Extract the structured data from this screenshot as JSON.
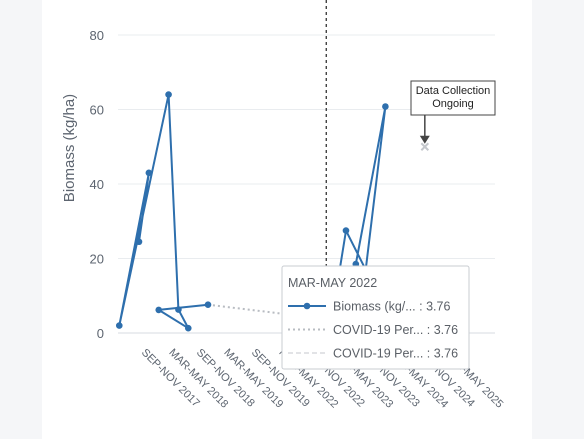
{
  "chart_data": {
    "type": "line",
    "ylabel": "Biomass (kg/ha)",
    "ylim": [
      0,
      80
    ],
    "yticks": [
      0,
      20,
      40,
      60,
      80
    ],
    "grid": true,
    "x_tick_labels": [
      "SEP-NOV 2017",
      "MAR-MAY 2018",
      "SEP-NOV 2018",
      "MAR-MAY 2019",
      "SEP-NOV 2019",
      "MAR-MAY 2022",
      "SEP-NOV 2022",
      "MAR-MAY 2023",
      "SEP-NOV 2023",
      "MAR-MAY 2024",
      "SEP-NOV 2024",
      "MAR-MAY 2025"
    ],
    "series": [
      {
        "name": "Biomass (kg/...",
        "color": "#2e6fad",
        "style": "solid-markers",
        "points": [
          {
            "x": "JUN-AUG 2017",
            "y": 24.5
          },
          {
            "x": "SEP-NOV 2017",
            "y": 43
          },
          {
            "x": "DEC-FEB 2018",
            "y": 2
          },
          {
            "x": "MAR-MAY 2018",
            "y": 64
          },
          {
            "x": "JUN-AUG 2018",
            "y": 6.3
          },
          {
            "x": "SEP-NOV 2018",
            "y": 1.3
          },
          {
            "x": "DEC-FEB 2019",
            "y": 6.2
          },
          {
            "x": "MAR-MAY 2019",
            "y": 7.6
          },
          {
            "x": "MAR-MAY 2022",
            "y": 3.76
          },
          {
            "x": "JUN-AUG 2022",
            "y": 11
          },
          {
            "x": "SEP-NOV 2022",
            "y": 27.5
          },
          {
            "x": "DEC-FEB 2023",
            "y": 14
          },
          {
            "x": "MAR-MAY 2023",
            "y": 17
          },
          {
            "x": "SEP-NOV 2023",
            "y": 60.8
          },
          {
            "x": "DEC-FEB 2024",
            "y": 18.5
          }
        ]
      },
      {
        "name": "COVID-19 Per...",
        "color": "#b8bcc2",
        "style": "dotted",
        "points": [
          {
            "x": "MAR-MAY 2019",
            "y": 7.6
          },
          {
            "x": "MAR-MAY 2022",
            "y": 3.76
          }
        ]
      },
      {
        "name": "COVID-19 Per...",
        "color": "#d8dade",
        "style": "dashed-light",
        "points": []
      }
    ],
    "annotation": {
      "lines": [
        "Data Collection",
        "Ongoing"
      ],
      "x": "SEP-NOV 2024",
      "y": 50
    },
    "vertical_reference_x": "MAR-MAY 2022",
    "tooltip": {
      "title": "MAR-MAY 2022",
      "rows": [
        {
          "label": "Biomass (kg/... : 3.76",
          "style": "solid-markers",
          "color": "#2e6fad"
        },
        {
          "label": "COVID-19 Per... : 3.76",
          "style": "dotted",
          "color": "#b8bcc2"
        },
        {
          "label": "COVID-19 Per... : 3.76",
          "style": "dashed-light",
          "color": "#d8dade"
        }
      ]
    }
  }
}
